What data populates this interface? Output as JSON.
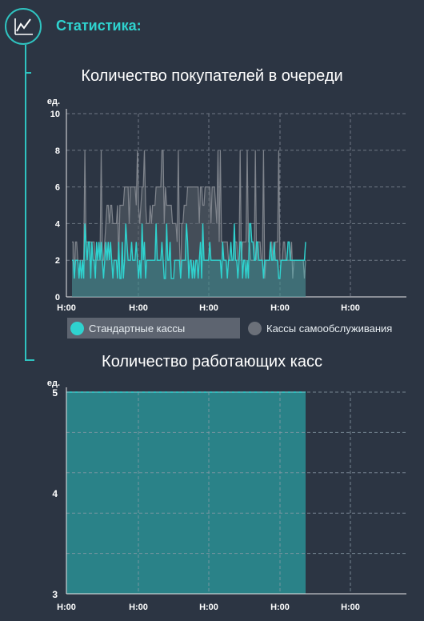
{
  "header": {
    "title": "Статистика:",
    "icon": "chart-line-icon"
  },
  "colors": {
    "accent": "#2fd3cf",
    "standard": "#2fd3cf",
    "self": "#6b7079",
    "background": "#2c3543"
  },
  "chart_data": [
    {
      "type": "line",
      "title": "Количество покупателей в очереди",
      "ylabel": "ед.",
      "y_ticks": [
        "0",
        "2",
        "4",
        "6",
        "8",
        "10"
      ],
      "ylim": [
        0,
        10
      ],
      "x_ticks": [
        "H:00",
        "H:00",
        "H:00",
        "H:00",
        "H:00"
      ],
      "grid": true,
      "legend": [
        {
          "name": "Стандартные кассы",
          "color": "#2fd3cf"
        },
        {
          "name": "Кассы самообслуживания",
          "color": "#6b7079"
        }
      ],
      "series": [
        {
          "name": "Стандартные кассы",
          "typical_range": [
            1,
            3
          ],
          "max": 4
        },
        {
          "name": "Кассы самообслуживания",
          "typical_range": [
            2,
            6
          ],
          "max": 8
        }
      ]
    },
    {
      "type": "area",
      "title": "Количество работающих касс",
      "ylabel": "ед.",
      "y_ticks": [
        "3",
        "4",
        "5"
      ],
      "ylim": [
        3,
        5
      ],
      "x_ticks": [
        "H:00",
        "H:00",
        "H:00",
        "H:00",
        "H:00"
      ],
      "grid": true,
      "series": [
        {
          "name": "",
          "value": 5
        }
      ]
    }
  ]
}
